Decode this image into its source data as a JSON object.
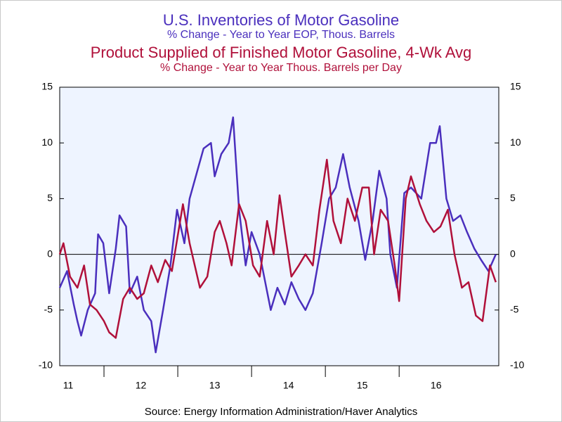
{
  "chart_data": {
    "type": "line",
    "titles": [
      {
        "text": "U.S. Inventories of Motor Gasoline",
        "color": "#4a2fbd"
      },
      {
        "text": "% Change - Year to Year    EOP, Thous. Barrels",
        "color": "#4a2fbd"
      },
      {
        "text": "Product Supplied of Finished Motor Gasoline, 4-Wk Avg",
        "color": "#b0103a"
      },
      {
        "text": "% Change - Year to Year    Thous. Barrels per Day",
        "color": "#b0103a"
      }
    ],
    "source": "Source:  Energy Information Administration/Haver Analytics",
    "xlim": [
      2011.4,
      2017.35
    ],
    "xticks": [
      {
        "value": 2011,
        "label": "11"
      },
      {
        "value": 2012,
        "label": "12"
      },
      {
        "value": 2013,
        "label": "13"
      },
      {
        "value": 2014,
        "label": "14"
      },
      {
        "value": 2015,
        "label": "15"
      },
      {
        "value": 2016,
        "label": "16"
      }
    ],
    "ylim": [
      -10,
      15
    ],
    "yticks": [
      -10,
      -5,
      0,
      5,
      10,
      15
    ],
    "y2lim": [
      -10,
      15
    ],
    "y2ticks": [
      -10,
      -5,
      0,
      5,
      10,
      15
    ],
    "zero_line": true,
    "series": [
      {
        "name": "U.S. Inventories of Motor Gasoline",
        "color": "#4a2fbd",
        "x": [
          2011.4,
          2011.5,
          2011.59,
          2011.64,
          2011.69,
          2011.78,
          2011.88,
          2011.92,
          2011.99,
          2012.07,
          2012.16,
          2012.21,
          2012.3,
          2012.35,
          2012.45,
          2012.54,
          2012.64,
          2012.7,
          2012.8,
          2012.9,
          2012.99,
          2013.09,
          2013.16,
          2013.35,
          2013.45,
          2013.5,
          2013.59,
          2013.69,
          2013.75,
          2013.83,
          2013.92,
          2014.0,
          2014.11,
          2014.26,
          2014.35,
          2014.45,
          2014.54,
          2014.64,
          2014.73,
          2014.83,
          2014.95,
          2015.05,
          2015.14,
          2015.24,
          2015.33,
          2015.45,
          2015.54,
          2015.64,
          2015.73,
          2015.83,
          2015.88,
          2015.97,
          2016.07,
          2016.16,
          2016.3,
          2016.42,
          2016.5,
          2016.55,
          2016.64,
          2016.73,
          2016.83,
          2016.92,
          2017.02,
          2017.11,
          2017.21,
          2017.31
        ],
        "values": [
          -3,
          -1.5,
          -4.5,
          -6,
          -7.3,
          -5,
          -3.5,
          1.8,
          1,
          -3.5,
          0.5,
          3.5,
          2.5,
          -3.5,
          -2,
          -5,
          -6,
          -8.8,
          -5,
          -1,
          4,
          1,
          5,
          9.5,
          10,
          7,
          9,
          10,
          12.3,
          4,
          -1,
          2,
          0,
          -5,
          -3,
          -4.5,
          -2.5,
          -4,
          -5,
          -3.5,
          1,
          5,
          6,
          9,
          6,
          3,
          -0.5,
          3,
          7.5,
          5,
          0,
          -3,
          5.5,
          6,
          5,
          10,
          10,
          11.5,
          5,
          3,
          3.5,
          2,
          0.5,
          -0.5,
          -1.5,
          0
        ]
      },
      {
        "name": "Product Supplied of Finished Motor Gasoline, 4-Wk Avg",
        "color": "#b0103a",
        "x": [
          2011.4,
          2011.45,
          2011.54,
          2011.64,
          2011.73,
          2011.81,
          2011.9,
          2012.0,
          2012.07,
          2012.16,
          2012.26,
          2012.35,
          2012.45,
          2012.54,
          2012.64,
          2012.73,
          2012.83,
          2012.92,
          2013.07,
          2013.16,
          2013.3,
          2013.4,
          2013.5,
          2013.57,
          2013.66,
          2013.73,
          2013.83,
          2013.92,
          2014.02,
          2014.11,
          2014.21,
          2014.3,
          2014.38,
          2014.45,
          2014.54,
          2014.64,
          2014.73,
          2014.83,
          2014.92,
          2015.02,
          2015.11,
          2015.21,
          2015.3,
          2015.4,
          2015.5,
          2015.59,
          2015.66,
          2015.75,
          2015.85,
          2015.94,
          2016.0,
          2016.09,
          2016.16,
          2016.28,
          2016.37,
          2016.47,
          2016.56,
          2016.66,
          2016.75,
          2016.85,
          2016.94,
          2017.04,
          2017.13,
          2017.23,
          2017.31
        ],
        "values": [
          0,
          1,
          -2,
          -3,
          -1,
          -4.5,
          -5,
          -6,
          -7,
          -7.5,
          -4,
          -3,
          -4,
          -3.5,
          -1,
          -2.5,
          -0.5,
          -1.5,
          4.5,
          1,
          -3,
          -2,
          2,
          3,
          1,
          -1,
          4.5,
          3,
          -1,
          -2,
          3,
          0,
          5.3,
          2,
          -2,
          -1,
          0,
          -1,
          4,
          8.5,
          3,
          1,
          5,
          3,
          6,
          6,
          0,
          4,
          3,
          -1,
          -4.2,
          5,
          7,
          4.5,
          3,
          2,
          2.5,
          4,
          0,
          -3,
          -2.5,
          -5.5,
          -6,
          -1,
          -2.5
        ]
      }
    ]
  }
}
